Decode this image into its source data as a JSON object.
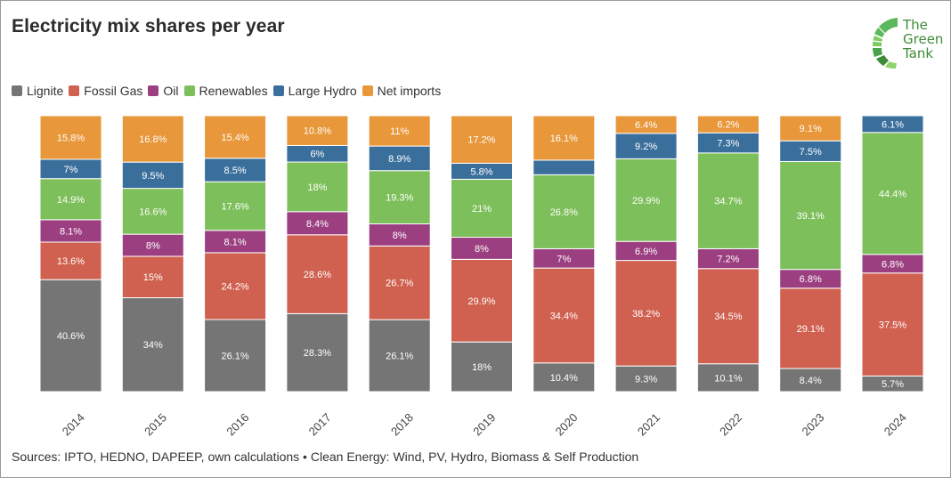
{
  "title": "Electricity mix shares per year",
  "logo": {
    "line1": "The",
    "line2": "Green",
    "line3": "Tank"
  },
  "source": "Sources: IPTO, HEDNO, DAPEEP, own calculations • Clean Energy: Wind, PV, Hydro, Biomass & Self Production",
  "chart_data": {
    "type": "bar",
    "stacked": true,
    "normalized": true,
    "title": "Electricity mix shares per year",
    "legend_position": "top-left",
    "grid": false,
    "categories": [
      "2014",
      "2015",
      "2016",
      "2017",
      "2018",
      "2019",
      "2020",
      "2021",
      "2022",
      "2023",
      "2024"
    ],
    "ylim": [
      0,
      100
    ],
    "series": [
      {
        "name": "Lignite",
        "color": "#757575",
        "values": [
          40.6,
          34,
          26.1,
          28.3,
          26.1,
          18,
          10.4,
          9.3,
          10.1,
          8.4,
          5.7
        ],
        "labels": [
          "40.6%",
          "34%",
          "26.1%",
          "28.3%",
          "26.1%",
          "18%",
          "10.4%",
          "9.3%",
          "10.1%",
          "8.4%",
          "5.7%"
        ]
      },
      {
        "name": "Fossil Gas",
        "color": "#d0604f",
        "values": [
          13.6,
          15,
          24.2,
          28.6,
          26.7,
          29.9,
          34.4,
          38.2,
          34.5,
          29.1,
          37.5
        ],
        "labels": [
          "13.6%",
          "15%",
          "24.2%",
          "28.6%",
          "26.7%",
          "29.9%",
          "34.4%",
          "38.2%",
          "34.5%",
          "29.1%",
          "37.5%"
        ]
      },
      {
        "name": "Oil",
        "color": "#9b3f80",
        "values": [
          8.1,
          8,
          8.1,
          8.4,
          8,
          8,
          7,
          6.9,
          7.2,
          6.8,
          6.8
        ],
        "labels": [
          "8.1%",
          "8%",
          "8.1%",
          "8.4%",
          "8%",
          "8%",
          "7%",
          "6.9%",
          "7.2%",
          "6.8%",
          "6.8%"
        ]
      },
      {
        "name": "Renewables",
        "color": "#7dbf5a",
        "values": [
          14.9,
          16.6,
          17.6,
          18,
          19.3,
          21,
          26.8,
          29.9,
          34.7,
          39.1,
          44.4
        ],
        "labels": [
          "14.9%",
          "16.6%",
          "17.6%",
          "18%",
          "19.3%",
          "21%",
          "26.8%",
          "29.9%",
          "34.7%",
          "39.1%",
          "44.4%"
        ]
      },
      {
        "name": "Large Hydro",
        "color": "#3a6f9c",
        "values": [
          7,
          9.5,
          8.5,
          6,
          8.9,
          5.8,
          5.3,
          9.2,
          7.3,
          7.5,
          6.1
        ],
        "labels": [
          "7%",
          "9.5%",
          "8.5%",
          "6%",
          "8.9%",
          "5.8%",
          "",
          "9.2%",
          "7.3%",
          "7.5%",
          "6.1%"
        ]
      },
      {
        "name": "Net imports",
        "color": "#e8973a",
        "values": [
          15.8,
          16.8,
          15.4,
          10.8,
          11,
          17.2,
          16.1,
          6.4,
          6.2,
          9.1,
          0
        ],
        "labels": [
          "15.8%",
          "16.8%",
          "15.4%",
          "10.8%",
          "11%",
          "17.2%",
          "16.1%",
          "6.4%",
          "6.2%",
          "9.1%",
          ""
        ]
      }
    ]
  }
}
